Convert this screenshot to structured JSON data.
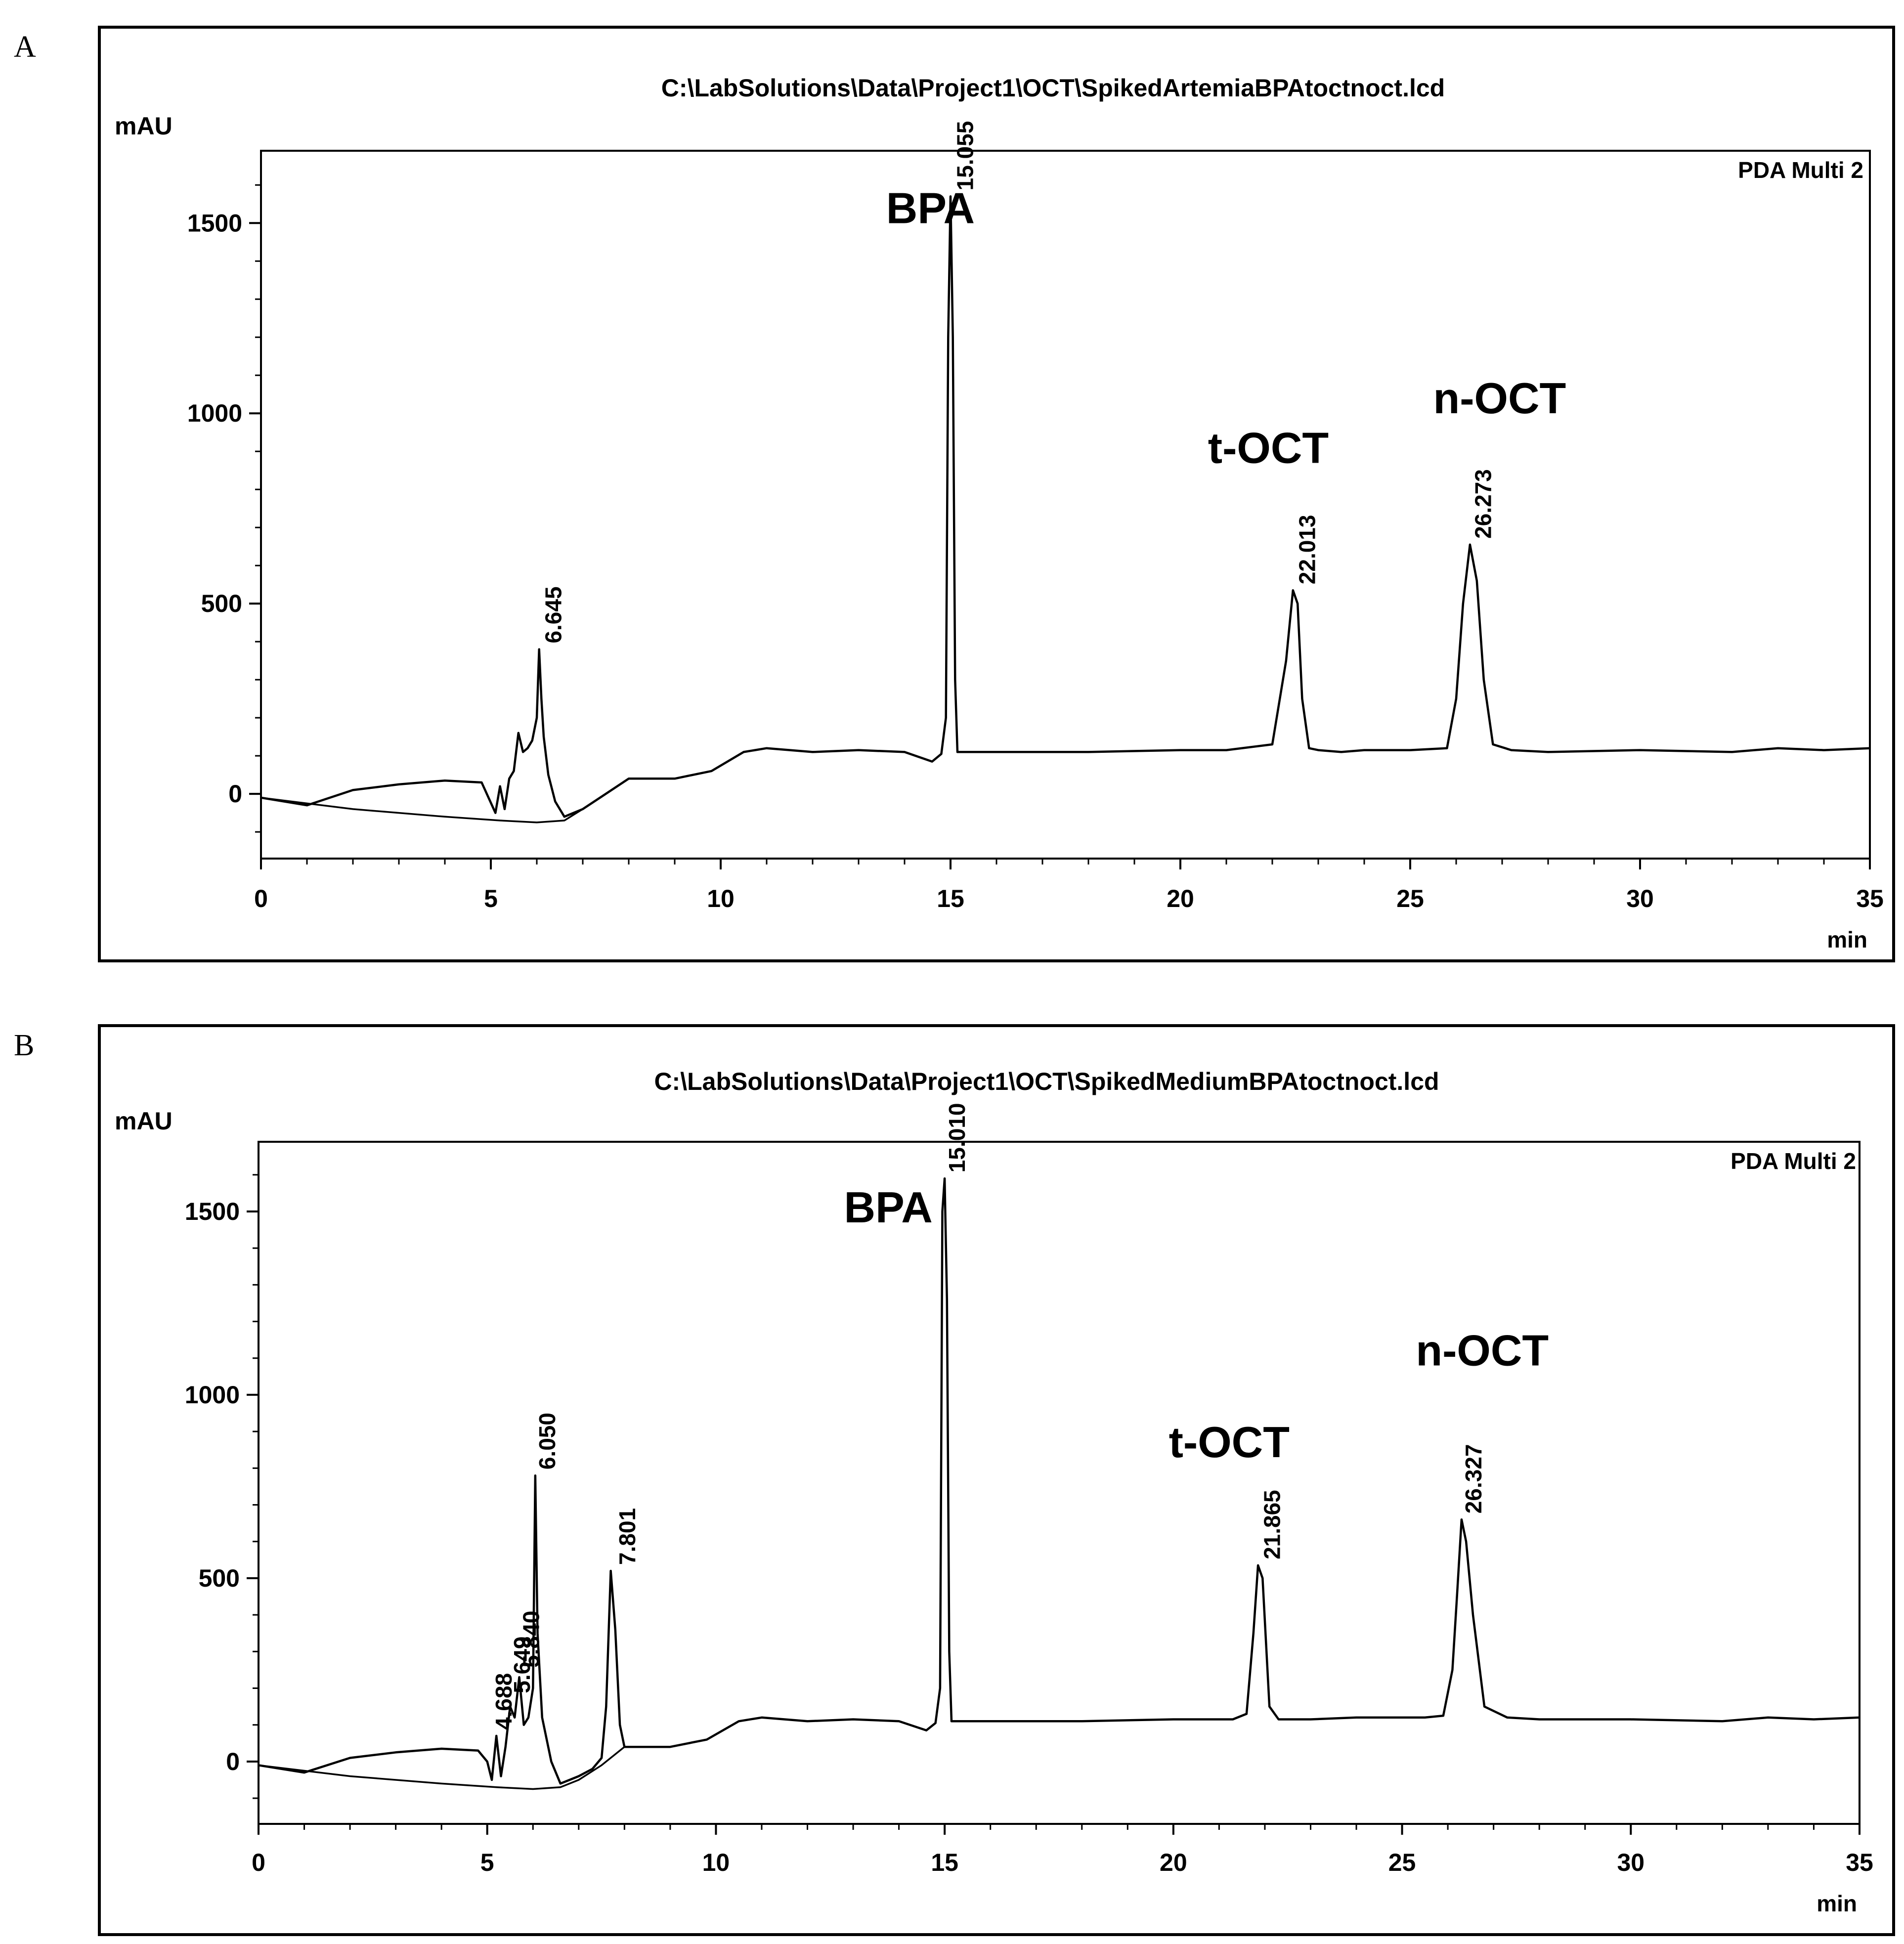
{
  "figure": {
    "panel_labels": [
      "A",
      "B"
    ]
  },
  "chart_data": [
    {
      "type": "line",
      "panel": "A",
      "title": "C:\\LabSolutions\\Data\\Project1\\OCT\\SpikedArtemiaBPAtoctnoct.lcd",
      "detector": "PDA Multi 2",
      "xlabel": "min",
      "ylabel": "mAU",
      "xlim": [
        0,
        35
      ],
      "ylim": [
        -170,
        1690
      ],
      "xticks": [
        0,
        5,
        10,
        15,
        20,
        25,
        30,
        35
      ],
      "yticks": [
        0,
        500,
        1000,
        1500
      ],
      "peak_labels": [
        {
          "label": "6.645",
          "x": 6.1,
          "y": 380
        },
        {
          "label": "15.055",
          "x": 15.06,
          "y": 1570
        },
        {
          "label": "22.013",
          "x": 22.5,
          "y": 535
        },
        {
          "label": "26.273",
          "x": 26.33,
          "y": 655
        }
      ],
      "compound_labels": [
        {
          "text": "BPA",
          "x": 13.6,
          "y": 1500
        },
        {
          "text": "t-OCT",
          "x": 20.6,
          "y": 870
        },
        {
          "text": "n-OCT",
          "x": 25.5,
          "y": 1000
        }
      ],
      "series": [
        {
          "x": [
            0,
            1,
            2,
            3,
            4,
            4.8,
            5.1,
            5.2,
            5.3,
            5.4,
            5.5,
            5.6,
            5.7,
            5.8,
            5.9,
            6.0,
            6.05,
            6.1,
            6.15,
            6.25,
            6.4,
            6.6,
            6.8,
            7.0,
            7.5,
            8.0,
            9.0,
            9.8,
            10.5,
            11.0,
            12,
            13,
            14,
            14.6,
            14.8,
            14.9,
            14.95,
            15.0,
            15.05,
            15.1,
            15.15,
            15.25,
            15.5,
            16,
            18,
            20,
            21,
            22.0,
            22.3,
            22.45,
            22.55,
            22.65,
            22.8,
            23.0,
            23.5,
            24,
            25,
            25.8,
            26.0,
            26.15,
            26.3,
            26.45,
            26.6,
            26.8,
            27.2,
            28,
            30,
            32,
            33,
            34,
            35
          ],
          "y": [
            -10,
            -30,
            10,
            25,
            35,
            30,
            -50,
            20,
            -40,
            40,
            60,
            160,
            110,
            120,
            140,
            200,
            380,
            250,
            150,
            50,
            -20,
            -60,
            -50,
            -40,
            0,
            40,
            40,
            60,
            110,
            120,
            110,
            115,
            110,
            85,
            105,
            200,
            1200,
            1570,
            1200,
            300,
            110,
            110,
            110,
            110,
            110,
            115,
            115,
            130,
            350,
            535,
            500,
            250,
            120,
            115,
            110,
            115,
            115,
            120,
            250,
            500,
            655,
            560,
            300,
            130,
            115,
            110,
            115,
            110,
            120,
            115,
            120
          ]
        },
        {
          "x": [
            0,
            2,
            4,
            5.2,
            6.0,
            6.6,
            7.0,
            7.5
          ],
          "y": [
            -10,
            -40,
            -60,
            -70,
            -75,
            -70,
            -40,
            0
          ]
        }
      ]
    },
    {
      "type": "line",
      "panel": "B",
      "title": "C:\\LabSolutions\\Data\\Project1\\OCT\\SpikedMediumBPAtoctnoct.lcd",
      "detector": "PDA Multi 2",
      "xlabel": "min",
      "ylabel": "mAU",
      "xlim": [
        0,
        35
      ],
      "ylim": [
        -170,
        1690
      ],
      "xticks": [
        0,
        5,
        10,
        15,
        20,
        25,
        30,
        35
      ],
      "yticks": [
        0,
        500,
        1000,
        1500
      ],
      "peak_labels": [
        {
          "label": "4.688",
          "x": 5.1,
          "y": 70
        },
        {
          "label": "5.649",
          "x": 5.5,
          "y": 170
        },
        {
          "label": "5.840",
          "x": 5.7,
          "y": 240
        },
        {
          "label": "6.050",
          "x": 6.05,
          "y": 780
        },
        {
          "label": "7.801",
          "x": 7.8,
          "y": 520
        },
        {
          "label": "15.010",
          "x": 15.01,
          "y": 1590
        },
        {
          "label": "21.865",
          "x": 21.9,
          "y": 535
        },
        {
          "label": "26.327",
          "x": 26.3,
          "y": 660
        }
      ],
      "compound_labels": [
        {
          "text": "BPA",
          "x": 12.8,
          "y": 1470
        },
        {
          "text": "t-OCT",
          "x": 19.9,
          "y": 830
        },
        {
          "text": "n-OCT",
          "x": 25.3,
          "y": 1080
        }
      ],
      "series": [
        {
          "x": [
            0,
            1,
            2,
            3,
            4,
            4.8,
            5.0,
            5.1,
            5.2,
            5.3,
            5.4,
            5.5,
            5.6,
            5.7,
            5.8,
            5.9,
            6.0,
            6.05,
            6.1,
            6.2,
            6.4,
            6.6,
            6.8,
            7.0,
            7.3,
            7.5,
            7.6,
            7.7,
            7.8,
            7.9,
            8.0,
            8.3,
            9.0,
            9.8,
            10.5,
            11,
            12,
            13,
            14,
            14.6,
            14.8,
            14.9,
            14.95,
            15.0,
            15.05,
            15.1,
            15.15,
            15.25,
            15.5,
            16,
            18,
            20,
            21.3,
            21.6,
            21.75,
            21.85,
            21.95,
            22.1,
            22.3,
            23,
            24,
            25.5,
            25.9,
            26.1,
            26.2,
            26.3,
            26.4,
            26.55,
            26.8,
            27.3,
            28,
            30,
            32,
            33,
            34,
            35
          ],
          "y": [
            -10,
            -30,
            10,
            25,
            35,
            30,
            0,
            -50,
            70,
            -40,
            40,
            150,
            120,
            230,
            100,
            120,
            200,
            780,
            350,
            120,
            0,
            -60,
            -50,
            -40,
            -20,
            10,
            150,
            520,
            360,
            100,
            40,
            40,
            40,
            60,
            110,
            120,
            110,
            115,
            110,
            85,
            105,
            200,
            1500,
            1590,
            1260,
            300,
            110,
            110,
            110,
            110,
            110,
            115,
            115,
            130,
            350,
            535,
            500,
            150,
            115,
            115,
            120,
            120,
            125,
            250,
            450,
            660,
            600,
            400,
            150,
            120,
            115,
            115,
            110,
            120,
            115,
            120
          ]
        },
        {
          "x": [
            0,
            2,
            4,
            5.2,
            6.0,
            6.6,
            7.0,
            7.5,
            8.0
          ],
          "y": [
            -10,
            -40,
            -60,
            -70,
            -75,
            -70,
            -50,
            -10,
            40
          ]
        }
      ]
    }
  ]
}
